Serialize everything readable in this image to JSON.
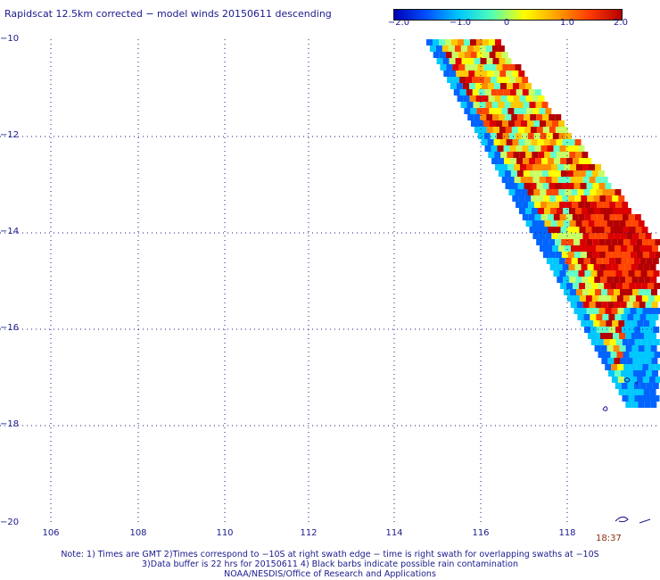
{
  "title": "Rapidscat 12.5km corrected − model winds 20150611 descending",
  "colorbar": {
    "ticks": [
      "−2.0",
      "−1.0",
      "0",
      "1.0",
      "2.0"
    ],
    "colors": [
      "#0000b4",
      "#0050ff",
      "#00c8ff",
      "#50ffb4",
      "#ffff00",
      "#ffa000",
      "#ff3c00",
      "#b40000"
    ]
  },
  "axes": {
    "lon_ticks": [
      "106",
      "108",
      "110",
      "112",
      "114",
      "116",
      "118"
    ],
    "lat_ticks": [
      "−10",
      "−12",
      "−14",
      "−16",
      "−18",
      "−20"
    ]
  },
  "time_label": "18:37",
  "notes": {
    "line1": "Note: 1) Times are GMT 2)Times correspond to −10S at right swath edge − time is right swath for overlapping swaths at −10S",
    "line2": "3)Data buffer is 22 hrs for 20150611 4) Black barbs indicate possible rain contamination",
    "line3": "NOAA/NESDIS/Office of Research and Applications"
  }
}
